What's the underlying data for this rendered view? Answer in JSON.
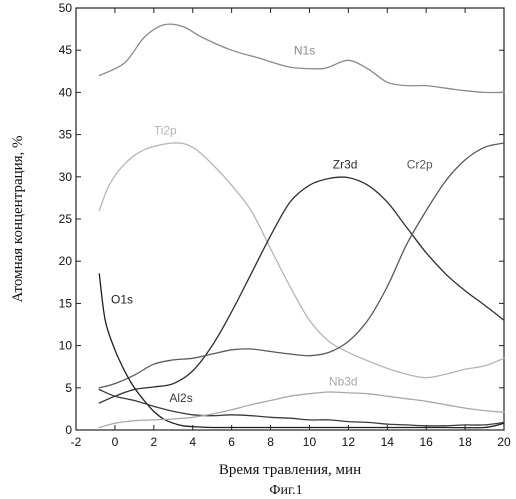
{
  "caption": "Фиг.1",
  "chart_data": {
    "type": "line",
    "xlabel": "Время травления, мин",
    "ylabel": "Атомная концентрация, %",
    "xlim": [
      -2,
      20
    ],
    "ylim": [
      0,
      50
    ],
    "xticks": [
      -2,
      0,
      2,
      4,
      6,
      8,
      10,
      12,
      14,
      16,
      18,
      20
    ],
    "yticks": [
      0,
      5,
      10,
      15,
      20,
      25,
      30,
      35,
      40,
      45,
      50
    ],
    "grid": false,
    "series": [
      {
        "name": "N1s",
        "color": "#8a8a8a",
        "points": [
          [
            -0.8,
            42
          ],
          [
            0.5,
            43.5
          ],
          [
            1.5,
            46.5
          ],
          [
            2.5,
            48
          ],
          [
            3.5,
            47.8
          ],
          [
            4.5,
            46.5
          ],
          [
            6,
            45
          ],
          [
            7.5,
            44
          ],
          [
            9,
            43
          ],
          [
            10.5,
            42.8
          ],
          [
            11,
            43
          ],
          [
            12,
            43.8
          ],
          [
            13,
            42.8
          ],
          [
            14,
            41.2
          ],
          [
            15,
            40.8
          ],
          [
            16,
            40.8
          ],
          [
            17,
            40.5
          ],
          [
            18,
            40.2
          ],
          [
            19,
            40
          ],
          [
            20,
            40
          ]
        ],
        "label": "N1s",
        "label_pos": [
          9.2,
          44.5
        ]
      },
      {
        "name": "Ti2p",
        "color": "#b5b5b5",
        "points": [
          [
            -0.8,
            26
          ],
          [
            -0.3,
            29
          ],
          [
            0.5,
            31.5
          ],
          [
            1.5,
            33.2
          ],
          [
            3,
            34
          ],
          [
            4,
            33.5
          ],
          [
            5,
            31.5
          ],
          [
            6,
            29
          ],
          [
            7,
            26
          ],
          [
            8,
            21.5
          ],
          [
            9,
            17
          ],
          [
            10,
            13
          ],
          [
            11,
            10.5
          ],
          [
            12,
            9.2
          ],
          [
            13,
            8.2
          ],
          [
            14,
            7.3
          ],
          [
            15,
            6.6
          ],
          [
            16,
            6.2
          ],
          [
            17,
            6.6
          ],
          [
            18,
            7.2
          ],
          [
            19,
            7.6
          ],
          [
            20,
            8.5
          ]
        ],
        "label": "Ti2p",
        "label_pos": [
          2,
          35
        ]
      },
      {
        "name": "Zr3d",
        "color": "#2e2e2e",
        "points": [
          [
            -0.8,
            3.2
          ],
          [
            0,
            4
          ],
          [
            1,
            4.8
          ],
          [
            2,
            5.1
          ],
          [
            3,
            5.5
          ],
          [
            4,
            7
          ],
          [
            5,
            10
          ],
          [
            6,
            14
          ],
          [
            7,
            18.5
          ],
          [
            8,
            23
          ],
          [
            9,
            27
          ],
          [
            10,
            29
          ],
          [
            11,
            29.8
          ],
          [
            12,
            29.9
          ],
          [
            13,
            29
          ],
          [
            14,
            27
          ],
          [
            15,
            24
          ],
          [
            16,
            21
          ],
          [
            17,
            18.5
          ],
          [
            18,
            16.5
          ],
          [
            19,
            14.8
          ],
          [
            20,
            13
          ]
        ],
        "label": "Zr3d",
        "label_pos": [
          11.2,
          31
        ]
      },
      {
        "name": "Cr2p",
        "color": "#5a5a5a",
        "points": [
          [
            -0.8,
            5
          ],
          [
            0,
            5.5
          ],
          [
            1,
            6.5
          ],
          [
            2,
            7.8
          ],
          [
            3,
            8.3
          ],
          [
            4,
            8.5
          ],
          [
            5,
            9
          ],
          [
            6,
            9.5
          ],
          [
            7,
            9.6
          ],
          [
            8,
            9.3
          ],
          [
            9,
            9
          ],
          [
            10,
            8.8
          ],
          [
            11,
            9.2
          ],
          [
            12,
            10.5
          ],
          [
            13,
            13
          ],
          [
            14,
            17
          ],
          [
            15,
            22
          ],
          [
            16,
            26
          ],
          [
            17,
            29.5
          ],
          [
            18,
            32
          ],
          [
            19,
            33.5
          ],
          [
            20,
            34
          ]
        ],
        "label": "Cr2p",
        "label_pos": [
          15,
          31
        ]
      },
      {
        "name": "O1s",
        "color": "#1e1e1e",
        "points": [
          [
            -0.8,
            18.5
          ],
          [
            -0.5,
            13
          ],
          [
            0,
            9.5
          ],
          [
            0.5,
            7
          ],
          [
            1,
            5
          ],
          [
            1.5,
            3.5
          ],
          [
            2,
            2.2
          ],
          [
            2.5,
            1.3
          ],
          [
            3,
            0.8
          ],
          [
            3.5,
            0.5
          ],
          [
            4,
            0.4
          ],
          [
            5,
            0.3
          ],
          [
            7,
            0.3
          ],
          [
            9,
            0.3
          ],
          [
            11,
            0.3
          ],
          [
            13,
            0.3
          ],
          [
            15,
            0.3
          ],
          [
            17,
            0.3
          ],
          [
            19,
            0.3
          ],
          [
            20,
            0.8
          ]
        ],
        "label": "O1s",
        "label_pos": [
          -0.2,
          15
        ]
      },
      {
        "name": "Al2s",
        "color": "#3a3a3a",
        "points": [
          [
            -0.8,
            4.8
          ],
          [
            0,
            4
          ],
          [
            1,
            3.5
          ],
          [
            2,
            2.8
          ],
          [
            3,
            2.2
          ],
          [
            4,
            1.8
          ],
          [
            5,
            1.7
          ],
          [
            6,
            1.8
          ],
          [
            7,
            1.7
          ],
          [
            8,
            1.5
          ],
          [
            9,
            1.4
          ],
          [
            10,
            1.2
          ],
          [
            11,
            1.2
          ],
          [
            12,
            1
          ],
          [
            13,
            0.9
          ],
          [
            14,
            0.7
          ],
          [
            15,
            0.6
          ],
          [
            16,
            0.5
          ],
          [
            17,
            0.5
          ],
          [
            18,
            0.6
          ],
          [
            19,
            0.6
          ],
          [
            20,
            0.9
          ]
        ],
        "label": "Al2s",
        "label_pos": [
          2.8,
          3.3
        ]
      },
      {
        "name": "Nb3d",
        "color": "#a8a8a8",
        "points": [
          [
            -0.8,
            0.3
          ],
          [
            0,
            0.8
          ],
          [
            1,
            1.1
          ],
          [
            2,
            1.2
          ],
          [
            3,
            1.3
          ],
          [
            4,
            1.5
          ],
          [
            5,
            1.9
          ],
          [
            6,
            2.4
          ],
          [
            7,
            3
          ],
          [
            8,
            3.5
          ],
          [
            9,
            4
          ],
          [
            10,
            4.3
          ],
          [
            11,
            4.5
          ],
          [
            12,
            4.4
          ],
          [
            13,
            4.3
          ],
          [
            14,
            4
          ],
          [
            15,
            3.7
          ],
          [
            16,
            3.4
          ],
          [
            17,
            3
          ],
          [
            18,
            2.6
          ],
          [
            19,
            2.3
          ],
          [
            20,
            2.1
          ]
        ],
        "label": "Nb3d",
        "label_pos": [
          11,
          5.3
        ]
      }
    ]
  }
}
